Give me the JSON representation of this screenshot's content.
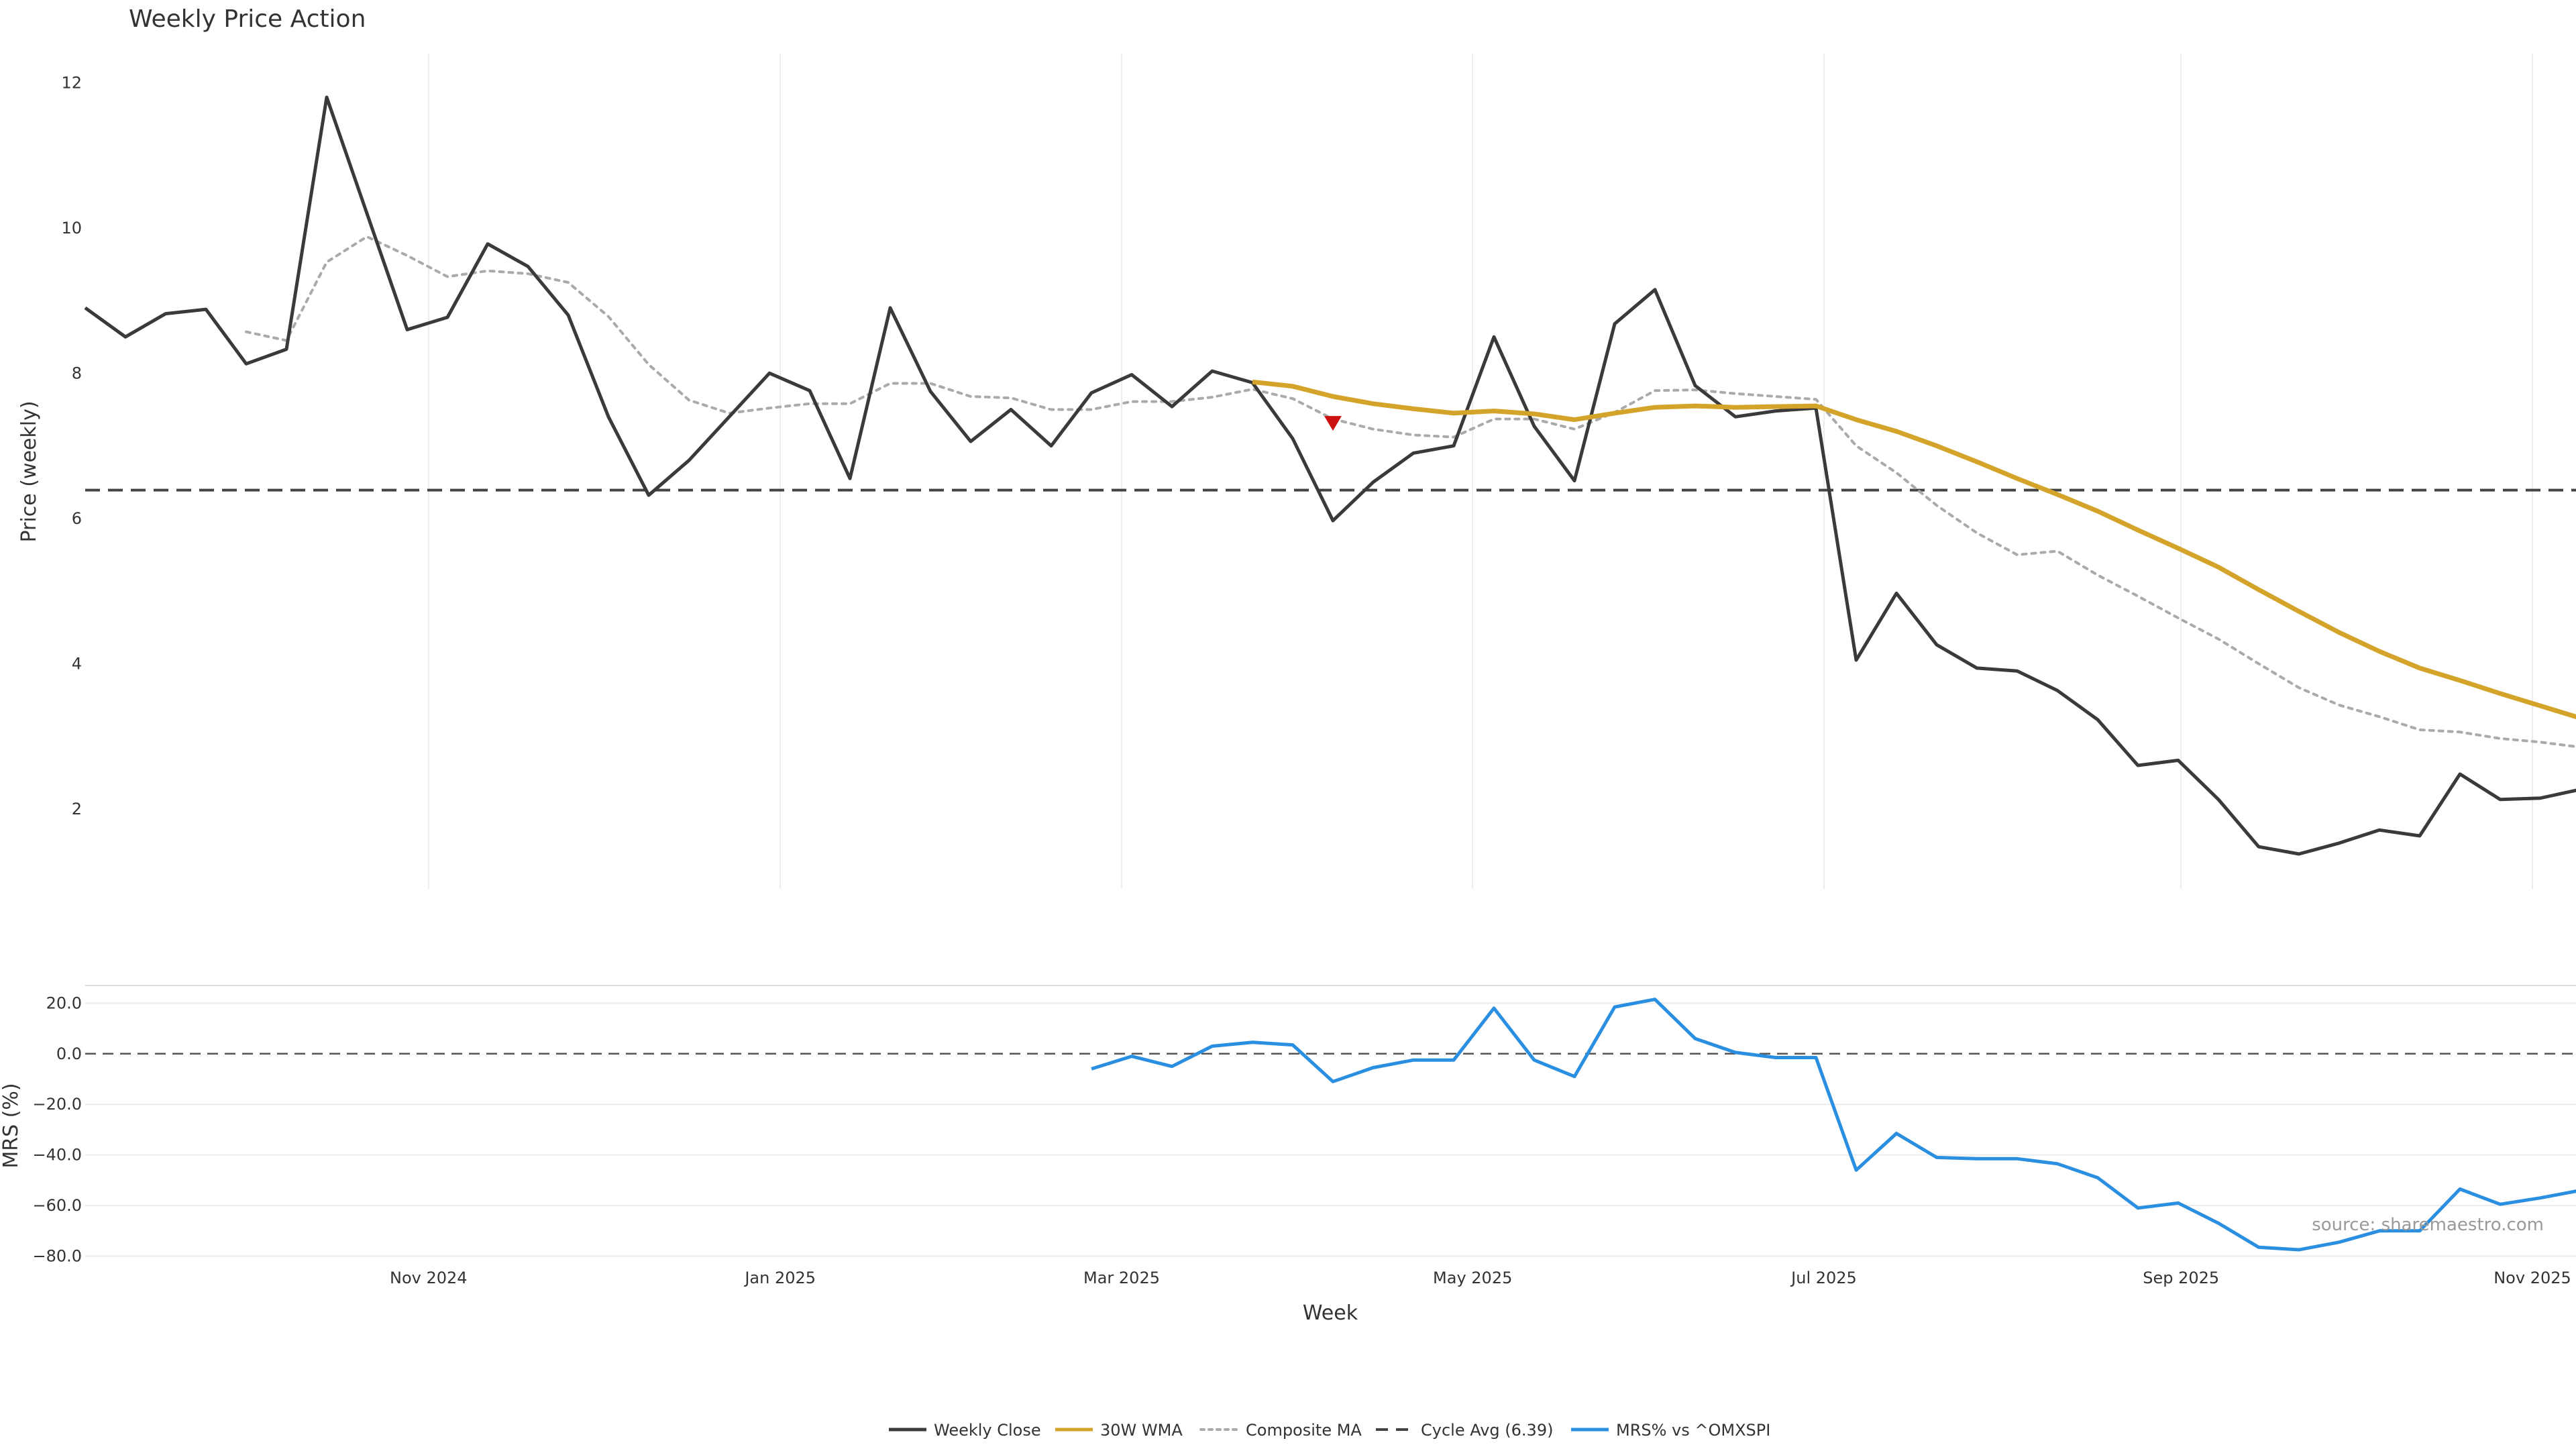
{
  "colors": {
    "weekly_close": "#3a3a3a",
    "wma": "#d4a32a",
    "composite": "#aaaaaa",
    "cycle": "#444444",
    "mrs": "#2a8fe0",
    "marker": "#cc1111",
    "grid": "#ececec"
  },
  "chart_data": [
    {
      "type": "line",
      "title": "Weekly Price Action",
      "ylabel": "Price (weekly)",
      "ylim": [
        0.9,
        12.4
      ],
      "yticks": [
        2,
        4,
        6,
        8,
        10,
        12
      ],
      "x_index_range": [
        0,
        62
      ],
      "xtick_positions": [
        8.53,
        17.27,
        25.75,
        34.47,
        43.2,
        52.07,
        60.8
      ],
      "cycle_avg": 6.39,
      "marker": {
        "x": 31,
        "y": 7.3,
        "shape": "down-triangle"
      },
      "series": [
        {
          "name": "Weekly Close",
          "start_index": 0,
          "values": [
            8.9,
            8.5,
            8.82,
            8.88,
            8.13,
            8.33,
            11.8,
            10.2,
            8.6,
            8.77,
            9.78,
            9.47,
            8.8,
            7.4,
            6.32,
            6.8,
            7.4,
            8.0,
            7.76,
            6.55,
            8.9,
            7.75,
            7.06,
            7.5,
            7.0,
            7.73,
            7.98,
            7.54,
            8.03,
            7.87,
            7.1,
            5.97,
            6.5,
            6.9,
            7.0,
            8.5,
            7.27,
            6.52,
            8.68,
            9.15,
            7.83,
            7.4,
            7.48,
            7.52,
            4.05,
            4.97,
            4.26,
            3.94,
            3.9,
            3.63,
            3.23,
            2.6,
            2.67,
            2.13,
            1.48,
            1.38,
            1.53,
            1.71,
            1.63,
            2.48,
            2.13,
            2.15,
            2.27
          ]
        },
        {
          "name": "30W WMA",
          "start_index": 29,
          "values": [
            7.88,
            7.82,
            7.68,
            7.58,
            7.51,
            7.45,
            7.48,
            7.44,
            7.36,
            7.45,
            7.53,
            7.55,
            7.53,
            7.54,
            7.55,
            7.36,
            7.2,
            7.0,
            6.78,
            6.55,
            6.33,
            6.1,
            5.84,
            5.59,
            5.33,
            5.02,
            4.72,
            4.43,
            4.17,
            3.94,
            3.77,
            3.59,
            3.42,
            3.25
          ]
        },
        {
          "name": "Composite MA",
          "start_index": 4,
          "values": [
            8.57,
            8.45,
            9.53,
            9.88,
            9.62,
            9.33,
            9.41,
            9.37,
            9.25,
            8.78,
            8.12,
            7.63,
            7.45,
            7.52,
            7.58,
            7.58,
            7.86,
            7.86,
            7.68,
            7.66,
            7.5,
            7.5,
            7.61,
            7.61,
            7.67,
            7.78,
            7.65,
            7.37,
            7.23,
            7.15,
            7.12,
            7.37,
            7.37,
            7.23,
            7.46,
            7.76,
            7.77,
            7.72,
            7.68,
            7.64,
            7.0,
            6.63,
            6.18,
            5.8,
            5.5,
            5.55,
            5.22,
            4.93,
            4.63,
            4.34,
            4.0,
            3.67,
            3.43,
            3.27,
            3.09,
            3.06,
            2.97,
            2.92,
            2.85
          ]
        }
      ]
    },
    {
      "type": "line",
      "ylabel": "MRS (%)",
      "xlabel": "Week",
      "ylim": [
        -82,
        27
      ],
      "yticks": [
        20,
        0,
        -20,
        -40,
        -60,
        -80
      ],
      "ytick_labels": [
        "20.0",
        "0.0",
        "−20.0",
        "−40.0",
        "−60.0",
        "−80.0"
      ],
      "xtick_labels": [
        "Nov 2024",
        "Jan 2025",
        "Mar 2025",
        "May 2025",
        "Jul 2025",
        "Sep 2025",
        "Nov 2025"
      ],
      "zero_line": 0,
      "series": [
        {
          "name": "MRS% vs ^OMXSPI",
          "start_index": 25,
          "values": [
            -6,
            -1,
            -5,
            3,
            4.5,
            3.5,
            -11,
            -5.5,
            -2.5,
            -2.5,
            18,
            -2.5,
            -9,
            18.5,
            21.5,
            6,
            0.5,
            -1.5,
            -1.5,
            -46,
            -31.5,
            -41,
            -41.5,
            -41.5,
            -43.5,
            -49,
            -61,
            -59,
            -67,
            -76.5,
            -77.5,
            -74.5,
            -70,
            -70,
            -53.5,
            -59.5,
            -57,
            -54
          ]
        }
      ],
      "source_note": "source: sharemaestro.com"
    }
  ],
  "legend": [
    {
      "label": "Weekly Close",
      "style": "solid",
      "color_key": "weekly_close"
    },
    {
      "label": "30W WMA",
      "style": "solid",
      "color_key": "wma"
    },
    {
      "label": "Composite MA",
      "style": "dotted",
      "color_key": "composite"
    },
    {
      "label": "Cycle Avg (6.39)",
      "style": "dashed",
      "color_key": "cycle"
    },
    {
      "label": "MRS% vs ^OMXSPI",
      "style": "solid",
      "color_key": "mrs"
    }
  ]
}
